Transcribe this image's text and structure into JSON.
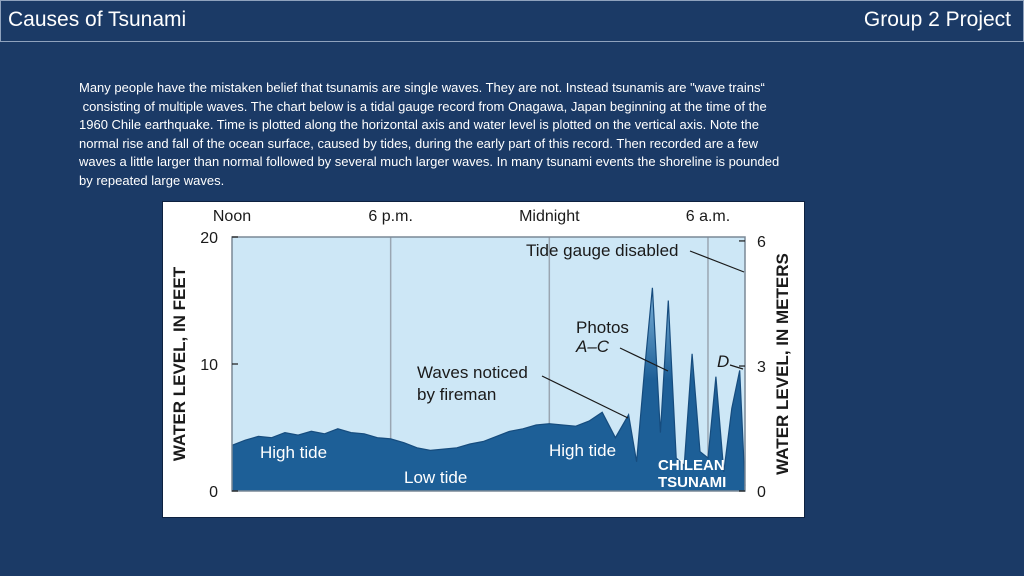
{
  "header": {
    "title": "Causes of Tsunami",
    "group": "Group 2 Project"
  },
  "intro": {
    "lines": [
      "Many people have the mistaken belief that tsunamis are single waves. They are not. Instead tsunamis are \"wave trains“",
      " consisting of multiple waves. The chart below is a tidal gauge record from Onagawa, Japan beginning at the time of the",
      "1960 Chile earthquake. Time is plotted along the horizontal axis and water level is plotted on the vertical axis. Note the",
      "normal rise and fall of the ocean surface, caused by tides, during the early part of this record. Then recorded are a few",
      "waves a little larger than normal followed by several much larger waves. In many tsunami events the shoreline is pounded",
      "by repeated large waves."
    ]
  },
  "colors": {
    "background": "#1b3a66",
    "sky": "#cde7f6",
    "water_dark": "#1d5f97",
    "water_light": "#7fb5dc",
    "grid": "#9aa6b2"
  },
  "chart_data": {
    "type": "area",
    "x_unit": "hours after noon",
    "time_labels": [
      {
        "t": 0,
        "label": "Noon"
      },
      {
        "t": 6,
        "label": "6 p.m."
      },
      {
        "t": 12,
        "label": "Midnight"
      },
      {
        "t": 18,
        "label": "6 a.m."
      }
    ],
    "xlim": [
      0,
      19.4
    ],
    "ylabel_left": "WATER LEVEL, IN FEET",
    "ylabel_right": "WATER LEVEL, IN METERS",
    "ylim_feet": [
      0,
      20
    ],
    "yticks_feet": [
      0,
      10,
      20
    ],
    "yticks_meters": [
      {
        "value": 0,
        "feet": 0
      },
      {
        "value": 3,
        "feet": 9.84
      },
      {
        "value": 6,
        "feet": 19.69
      }
    ],
    "series": [
      {
        "x": [
          0,
          0.5,
          1,
          1.5,
          2,
          2.5,
          3,
          3.5,
          4,
          4.5,
          5,
          5.5,
          6,
          6.5,
          7,
          7.5,
          8,
          8.5,
          9,
          9.5,
          10,
          10.5,
          11,
          11.5,
          12,
          12.5,
          13,
          13.5,
          14,
          14.5,
          15,
          15.3,
          15.6,
          15.9,
          16.2,
          16.5,
          16.8,
          17.1,
          17.4,
          17.7,
          18.0,
          18.3,
          18.6,
          18.9,
          19.2,
          19.4
        ],
        "y": [
          3.6,
          4.0,
          4.3,
          4.2,
          4.6,
          4.4,
          4.7,
          4.5,
          4.9,
          4.6,
          4.5,
          4.2,
          4.1,
          3.8,
          3.4,
          3.2,
          3.3,
          3.4,
          3.7,
          3.9,
          4.3,
          4.7,
          4.9,
          5.2,
          5.3,
          5.2,
          5.1,
          5.5,
          6.2,
          4.2,
          6.0,
          2.3,
          9.5,
          16.0,
          4.6,
          15.0,
          2.6,
          2.0,
          10.8,
          3.1,
          2.6,
          9.0,
          1.5,
          6.5,
          9.5,
          0.4
        ]
      }
    ],
    "annotations": {
      "tide_gauge": "Tide gauge disabled",
      "photos_line1": "Photos",
      "photos_line2": "A–C",
      "d_label": "D",
      "waves_line1": "Waves noticed",
      "waves_line2": "by fireman",
      "high_tide_1": "High tide",
      "high_tide_2": "High tide",
      "low_tide": "Low tide",
      "chilean_1": "CHILEAN",
      "chilean_2": "TSUNAMI"
    },
    "grid": true
  }
}
